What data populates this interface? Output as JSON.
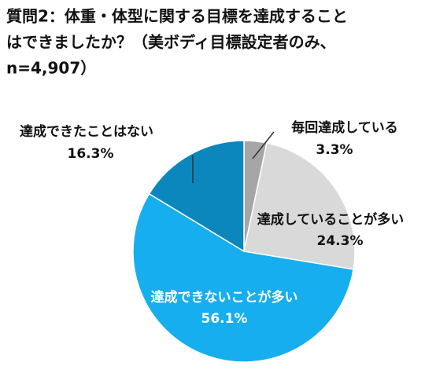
{
  "chart_data": {
    "type": "pie",
    "title": [
      "質問2：体重・体型に関する目標を達成すること",
      "はできましたか？（美ボディ目標設定者のみ、",
      "n=4,907）"
    ],
    "categories": [
      "毎回達成している",
      "達成していることが多い",
      "達成できないことが多い",
      "達成できたことはない"
    ],
    "values": [
      3.3,
      24.3,
      56.1,
      16.3
    ],
    "value_labels": [
      "3.3%",
      "24.3%",
      "56.1%",
      "16.3%"
    ],
    "colors": [
      "#a6a6a6",
      "#d9d9d9",
      "#16aeee",
      "#0b87bd"
    ]
  }
}
